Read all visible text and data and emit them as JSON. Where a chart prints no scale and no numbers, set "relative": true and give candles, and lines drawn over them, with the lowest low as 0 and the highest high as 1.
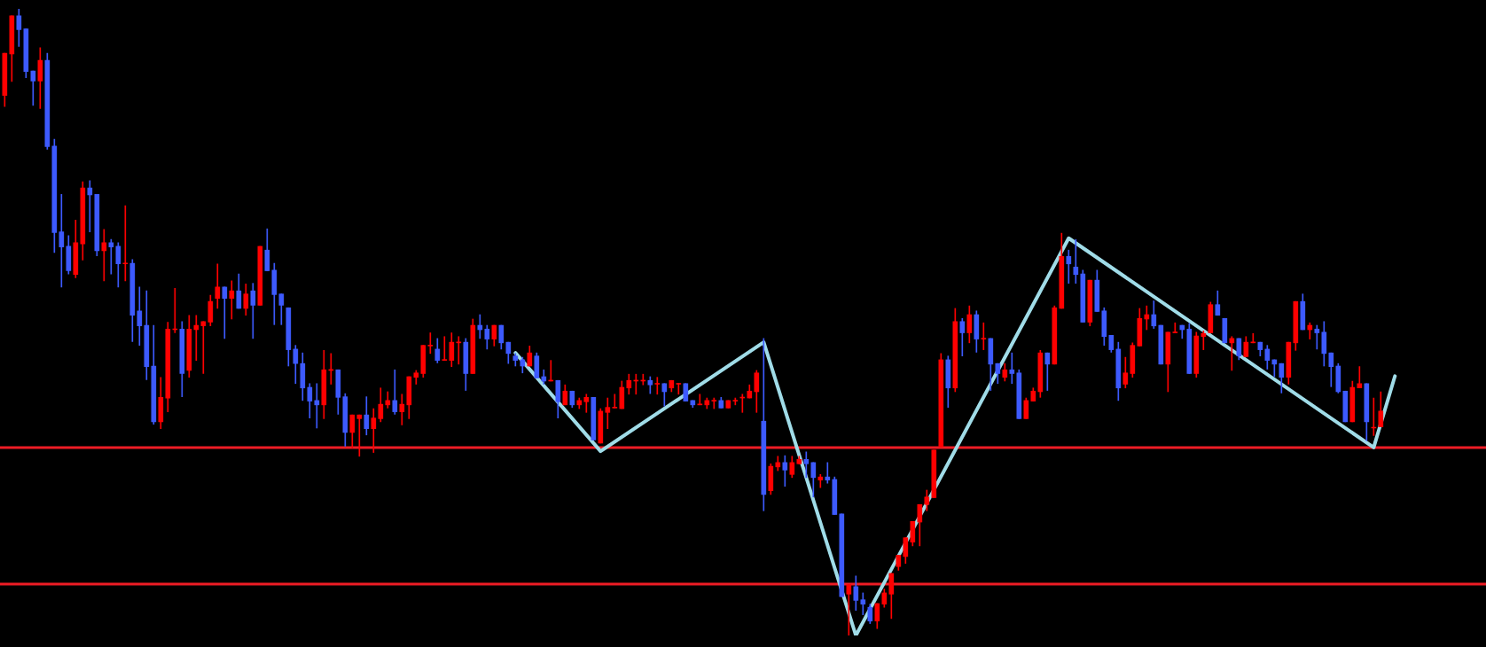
{
  "chart_data": {
    "type": "candlestick",
    "relative": true,
    "tick_labels": false,
    "categories": [
      null,
      null,
      null,
      null,
      null,
      null,
      null,
      null,
      null,
      null,
      null,
      null,
      null,
      null,
      null,
      null,
      null,
      null,
      null,
      null,
      null,
      null,
      null,
      null,
      null,
      null,
      null,
      null,
      null,
      null,
      null,
      null,
      null,
      null,
      null,
      null,
      null,
      null,
      null,
      null,
      null,
      null,
      null,
      null,
      null,
      null,
      null,
      null,
      null,
      null,
      null,
      null,
      null,
      null,
      null,
      null,
      null,
      null,
      null,
      null,
      null,
      null,
      null,
      null,
      null,
      null,
      null,
      null,
      null,
      null,
      null,
      null,
      null,
      null,
      null,
      null,
      null,
      null,
      null,
      null,
      null,
      null,
      null,
      null,
      null,
      null,
      null,
      null,
      null,
      null,
      null,
      null,
      null,
      null,
      null,
      null,
      null,
      null,
      null,
      null,
      null,
      null,
      null,
      null,
      null,
      null,
      null,
      null,
      null,
      null,
      null,
      null,
      null,
      null,
      null,
      null,
      null,
      null,
      null,
      null,
      null,
      null,
      null,
      null,
      null,
      null,
      null,
      null,
      null,
      null,
      null,
      null,
      null,
      null,
      null,
      null,
      null,
      null,
      null,
      null,
      null,
      null,
      null,
      null,
      null,
      null,
      null,
      null,
      null,
      null,
      null,
      null,
      null,
      null,
      null,
      null,
      null,
      null,
      null,
      null,
      null,
      null,
      null,
      null,
      null,
      null,
      null,
      null,
      null,
      null,
      null,
      null,
      null,
      null,
      null,
      null,
      null,
      null,
      null,
      null,
      null,
      null,
      null,
      null,
      null,
      null,
      null,
      null,
      null,
      null,
      null,
      null,
      null,
      null,
      null,
      null,
      null
    ],
    "ohlc": [
      [
        0.862,
        0.929,
        0.844,
        0.929
      ],
      [
        0.928,
        0.989,
        0.884,
        0.989
      ],
      [
        0.989,
        1,
        0.94,
        0.967
      ],
      [
        0.968,
        0.968,
        0.89,
        0.9
      ],
      [
        0.901,
        0.901,
        0.846,
        0.885
      ],
      [
        0.885,
        0.938,
        0.841,
        0.918
      ],
      [
        0.918,
        0.929,
        0.776,
        0.78
      ],
      [
        0.781,
        0.792,
        0.611,
        0.643
      ],
      [
        0.644,
        0.704,
        0.556,
        0.62
      ],
      [
        0.621,
        0.638,
        0.577,
        0.582
      ],
      [
        0.576,
        0.663,
        0.571,
        0.627
      ],
      [
        0.625,
        0.724,
        0.599,
        0.714
      ],
      [
        0.714,
        0.726,
        0.644,
        0.703
      ],
      [
        0.704,
        0.704,
        0.606,
        0.614
      ],
      [
        0.614,
        0.648,
        0.566,
        0.627
      ],
      [
        0.627,
        0.632,
        0.577,
        0.62
      ],
      [
        0.621,
        0.627,
        0.556,
        0.593
      ],
      [
        0.593,
        0.686,
        0.566,
        0.594
      ],
      [
        0.594,
        0.6,
        0.469,
        0.511
      ],
      [
        0.518,
        0.556,
        0.463,
        0.494
      ],
      [
        0.495,
        0.55,
        0.408,
        0.429
      ],
      [
        0.43,
        0.495,
        0.337,
        0.341
      ],
      [
        0.341,
        0.412,
        0.33,
        0.38
      ],
      [
        0.379,
        0.5,
        0.357,
        0.489
      ],
      [
        0.488,
        0.554,
        0.483,
        0.489
      ],
      [
        0.489,
        0.501,
        0.381,
        0.418
      ],
      [
        0.423,
        0.511,
        0.412,
        0.489
      ],
      [
        0.488,
        0.511,
        0.439,
        0.495
      ],
      [
        0.494,
        0.501,
        0.418,
        0.501
      ],
      [
        0.5,
        0.543,
        0.494,
        0.533
      ],
      [
        0.538,
        0.593,
        0.522,
        0.556
      ],
      [
        0.556,
        0.556,
        0.474,
        0.538
      ],
      [
        0.538,
        0.566,
        0.505,
        0.55
      ],
      [
        0.55,
        0.577,
        0.522,
        0.522
      ],
      [
        0.522,
        0.561,
        0.511,
        0.545
      ],
      [
        0.55,
        0.562,
        0.474,
        0.527
      ],
      [
        0.527,
        0.621,
        0.527,
        0.621
      ],
      [
        0.615,
        0.649,
        0.582,
        0.582
      ],
      [
        0.583,
        0.594,
        0.496,
        0.544
      ],
      [
        0.545,
        0.545,
        0.496,
        0.527
      ],
      [
        0.523,
        0.523,
        0.43,
        0.456
      ],
      [
        0.457,
        0.463,
        0.402,
        0.434
      ],
      [
        0.434,
        0.451,
        0.375,
        0.395
      ],
      [
        0.396,
        0.402,
        0.347,
        0.374
      ],
      [
        0.375,
        0.402,
        0.331,
        0.368
      ],
      [
        0.368,
        0.455,
        0.346,
        0.424
      ],
      [
        0.423,
        0.45,
        0.401,
        0.424
      ],
      [
        0.424,
        0.424,
        0.353,
        0.38
      ],
      [
        0.381,
        0.386,
        0.302,
        0.324
      ],
      [
        0.324,
        0.352,
        0.299,
        0.352
      ],
      [
        0.346,
        0.352,
        0.286,
        0.352
      ],
      [
        0.352,
        0.381,
        0.32,
        0.33
      ],
      [
        0.33,
        0.362,
        0.292,
        0.347
      ],
      [
        0.346,
        0.395,
        0.341,
        0.369
      ],
      [
        0.368,
        0.389,
        0.363,
        0.375
      ],
      [
        0.375,
        0.424,
        0.353,
        0.357
      ],
      [
        0.357,
        0.385,
        0.336,
        0.369
      ],
      [
        0.368,
        0.413,
        0.346,
        0.413
      ],
      [
        0.412,
        0.423,
        0.401,
        0.419
      ],
      [
        0.418,
        0.463,
        0.412,
        0.463
      ],
      [
        0.462,
        0.483,
        0.45,
        0.463
      ],
      [
        0.457,
        0.474,
        0.435,
        0.439
      ],
      [
        0.439,
        0.477,
        0.439,
        0.44
      ],
      [
        0.439,
        0.483,
        0.429,
        0.468
      ],
      [
        0.467,
        0.477,
        0.433,
        0.468
      ],
      [
        0.468,
        0.474,
        0.391,
        0.418
      ],
      [
        0.418,
        0.505,
        0.418,
        0.495
      ],
      [
        0.495,
        0.512,
        0.474,
        0.488
      ],
      [
        0.489,
        0.495,
        0.457,
        0.473
      ],
      [
        0.473,
        0.495,
        0.462,
        0.495
      ],
      [
        0.495,
        0.495,
        0.457,
        0.467
      ],
      [
        0.468,
        0.468,
        0.434,
        0.45
      ],
      [
        0.446,
        0.45,
        0.43,
        0.439
      ],
      [
        0.44,
        0.444,
        0.419,
        0.43
      ],
      [
        0.43,
        0.462,
        0.43,
        0.451
      ],
      [
        0.446,
        0.451,
        0.411,
        0.411
      ],
      [
        0.413,
        0.424,
        0.401,
        0.406
      ],
      [
        0.406,
        0.439,
        0.406,
        0.407
      ],
      [
        0.407,
        0.407,
        0.347,
        0.373
      ],
      [
        0.368,
        0.4,
        0.368,
        0.39
      ],
      [
        0.39,
        0.39,
        0.364,
        0.368
      ],
      [
        0.368,
        0.379,
        0.362,
        0.375
      ],
      [
        0.373,
        0.385,
        0.356,
        0.38
      ],
      [
        0.38,
        0.38,
        0.312,
        0.312
      ],
      [
        0.307,
        0.362,
        0.307,
        0.358
      ],
      [
        0.356,
        0.379,
        0.33,
        0.364
      ],
      [
        0.363,
        0.385,
        0.363,
        0.364
      ],
      [
        0.362,
        0.406,
        0.362,
        0.396
      ],
      [
        0.395,
        0.417,
        0.385,
        0.407
      ],
      [
        0.406,
        0.417,
        0.385,
        0.407
      ],
      [
        0.406,
        0.417,
        0.4,
        0.407
      ],
      [
        0.407,
        0.413,
        0.386,
        0.4
      ],
      [
        0.401,
        0.412,
        0.385,
        0.402
      ],
      [
        0.402,
        0.402,
        0.366,
        0.389
      ],
      [
        0.395,
        0.407,
        0.389,
        0.407
      ],
      [
        0.401,
        0.402,
        0.385,
        0.402
      ],
      [
        0.402,
        0.402,
        0.374,
        0.374
      ],
      [
        0.375,
        0.375,
        0.364,
        0.368
      ],
      [
        0.368,
        0.385,
        0.368,
        0.369
      ],
      [
        0.368,
        0.379,
        0.362,
        0.375
      ],
      [
        0.374,
        0.379,
        0.362,
        0.375
      ],
      [
        0.375,
        0.38,
        0.363,
        0.363
      ],
      [
        0.363,
        0.375,
        0.363,
        0.375
      ],
      [
        0.374,
        0.379,
        0.368,
        0.375
      ],
      [
        0.379,
        0.385,
        0.356,
        0.38
      ],
      [
        0.379,
        0.4,
        0.379,
        0.39
      ],
      [
        0.389,
        0.423,
        0.356,
        0.419
      ],
      [
        0.342,
        0.474,
        0.199,
        0.225
      ],
      [
        0.231,
        0.274,
        0.225,
        0.27
      ],
      [
        0.269,
        0.286,
        0.263,
        0.276
      ],
      [
        0.276,
        0.287,
        0.238,
        0.264
      ],
      [
        0.257,
        0.286,
        0.252,
        0.276
      ],
      [
        0.274,
        0.286,
        0.274,
        0.281
      ],
      [
        0.281,
        0.293,
        0.252,
        0.274
      ],
      [
        0.276,
        0.276,
        0.221,
        0.252
      ],
      [
        0.248,
        0.257,
        0.236,
        0.253
      ],
      [
        0.253,
        0.276,
        0.243,
        0.248
      ],
      [
        0.249,
        0.253,
        0.193,
        0.193
      ],
      [
        0.194,
        0.194,
        0.062,
        0.062
      ],
      [
        0.066,
        0.081,
        0,
        0.081
      ],
      [
        0.078,
        0.095,
        0.04,
        0.056
      ],
      [
        0.057,
        0.068,
        0.033,
        0.05
      ],
      [
        0.045,
        0.05,
        0.019,
        0.023
      ],
      [
        0.023,
        0.051,
        0.011,
        0.051
      ],
      [
        0.05,
        0.074,
        0.045,
        0.068
      ],
      [
        0.066,
        0.099,
        0.027,
        0.099
      ],
      [
        0.11,
        0.128,
        0.104,
        0.128
      ],
      [
        0.126,
        0.156,
        0.115,
        0.156
      ],
      [
        0.149,
        0.182,
        0.143,
        0.182
      ],
      [
        0.181,
        0.209,
        0.143,
        0.209
      ],
      [
        0.209,
        0.232,
        0.199,
        0.221
      ],
      [
        0.22,
        0.296,
        0.22,
        0.296
      ],
      [
        0.301,
        0.45,
        0.301,
        0.44
      ],
      [
        0.44,
        0.446,
        0.364,
        0.395
      ],
      [
        0.395,
        0.522,
        0.389,
        0.501
      ],
      [
        0.501,
        0.506,
        0.446,
        0.483
      ],
      [
        0.483,
        0.526,
        0.467,
        0.512
      ],
      [
        0.512,
        0.518,
        0.452,
        0.473
      ],
      [
        0.473,
        0.499,
        0.456,
        0.474
      ],
      [
        0.474,
        0.474,
        0.391,
        0.433
      ],
      [
        0.434,
        0.434,
        0.402,
        0.418
      ],
      [
        0.412,
        0.434,
        0.406,
        0.424
      ],
      [
        0.424,
        0.451,
        0.402,
        0.418
      ],
      [
        0.419,
        0.424,
        0.346,
        0.346
      ],
      [
        0.346,
        0.379,
        0.346,
        0.375
      ],
      [
        0.374,
        0.395,
        0.374,
        0.39
      ],
      [
        0.389,
        0.455,
        0.38,
        0.451
      ],
      [
        0.451,
        0.451,
        0.391,
        0.433
      ],
      [
        0.433,
        0.526,
        0.433,
        0.523
      ],
      [
        0.522,
        0.642,
        0.522,
        0.605
      ],
      [
        0.605,
        0.615,
        0.562,
        0.593
      ],
      [
        0.588,
        0.632,
        0.562,
        0.576
      ],
      [
        0.577,
        0.583,
        0.5,
        0.5
      ],
      [
        0.5,
        0.567,
        0.494,
        0.567
      ],
      [
        0.567,
        0.583,
        0.517,
        0.517
      ],
      [
        0.518,
        0.523,
        0.463,
        0.477
      ],
      [
        0.479,
        0.479,
        0.452,
        0.456
      ],
      [
        0.457,
        0.468,
        0.375,
        0.395
      ],
      [
        0.401,
        0.444,
        0.395,
        0.419
      ],
      [
        0.418,
        0.467,
        0.412,
        0.463
      ],
      [
        0.462,
        0.522,
        0.462,
        0.506
      ],
      [
        0.505,
        0.526,
        0.488,
        0.512
      ],
      [
        0.512,
        0.534,
        0.49,
        0.494
      ],
      [
        0.495,
        0.495,
        0.433,
        0.433
      ],
      [
        0.433,
        0.484,
        0.389,
        0.484
      ],
      [
        0.483,
        0.499,
        0.483,
        0.484
      ],
      [
        0.495,
        0.495,
        0.474,
        0.488
      ],
      [
        0.489,
        0.498,
        0.418,
        0.418
      ],
      [
        0.418,
        0.484,
        0.412,
        0.478
      ],
      [
        0.477,
        0.486,
        0.456,
        0.482
      ],
      [
        0.483,
        0.532,
        0.483,
        0.528
      ],
      [
        0.528,
        0.55,
        0.511,
        0.511
      ],
      [
        0.506,
        0.506,
        0.467,
        0.467
      ],
      [
        0.467,
        0.477,
        0.423,
        0.474
      ],
      [
        0.474,
        0.474,
        0.44,
        0.446
      ],
      [
        0.445,
        0.477,
        0.445,
        0.468
      ],
      [
        0.467,
        0.482,
        0.467,
        0.468
      ],
      [
        0.468,
        0.468,
        0.446,
        0.456
      ],
      [
        0.457,
        0.463,
        0.425,
        0.439
      ],
      [
        0.44,
        0.44,
        0.413,
        0.433
      ],
      [
        0.434,
        0.434,
        0.387,
        0.412
      ],
      [
        0.412,
        0.468,
        0.401,
        0.468
      ],
      [
        0.467,
        0.533,
        0.455,
        0.533
      ],
      [
        0.533,
        0.545,
        0.488,
        0.488
      ],
      [
        0.488,
        0.499,
        0.473,
        0.495
      ],
      [
        0.489,
        0.495,
        0.457,
        0.483
      ],
      [
        0.484,
        0.501,
        0.43,
        0.45
      ],
      [
        0.451,
        0.451,
        0.397,
        0.429
      ],
      [
        0.43,
        0.434,
        0.387,
        0.389
      ],
      [
        0.39,
        0.39,
        0.341,
        0.341
      ],
      [
        0.341,
        0.406,
        0.341,
        0.396
      ],
      [
        0.395,
        0.429,
        0.395,
        0.402
      ],
      [
        0.402,
        0.402,
        0.311,
        0.341
      ],
      [
        0.331,
        0.379,
        0.319,
        0.332
      ],
      [
        0.333,
        0.389,
        0.333,
        0.358
      ],
      null,
      null
    ],
    "colors": [
      "#ff0000",
      "#ff0000",
      "#3d5afe",
      "#3d5afe",
      "#3d5afe",
      "#ff0000",
      "#3d5afe",
      "#3d5afe",
      "#3d5afe",
      "#3d5afe",
      "#ff0000",
      "#ff0000",
      "#3d5afe",
      "#3d5afe",
      "#ff0000",
      "#3d5afe",
      "#3d5afe",
      "#ff0000",
      "#3d5afe",
      "#3d5afe",
      "#3d5afe",
      "#3d5afe",
      "#ff0000",
      "#ff0000",
      "#ff0000",
      "#3d5afe",
      "#ff0000",
      "#ff0000",
      "#ff0000",
      "#ff0000",
      "#ff0000",
      "#3d5afe",
      "#ff0000",
      "#3d5afe",
      "#ff0000",
      "#3d5afe",
      "#ff0000",
      "#3d5afe",
      "#3d5afe",
      "#3d5afe",
      "#3d5afe",
      "#3d5afe",
      "#3d5afe",
      "#3d5afe",
      "#3d5afe",
      "#ff0000",
      "#ff0000",
      "#3d5afe",
      "#3d5afe",
      "#ff0000",
      "#ff0000",
      "#3d5afe",
      "#ff0000",
      "#ff0000",
      "#ff0000",
      "#3d5afe",
      "#ff0000",
      "#ff0000",
      "#ff0000",
      "#ff0000",
      "#ff0000",
      "#3d5afe",
      "#ff0000",
      "#ff0000",
      "#ff0000",
      "#3d5afe",
      "#ff0000",
      "#3d5afe",
      "#3d5afe",
      "#ff0000",
      "#3d5afe",
      "#3d5afe",
      "#3d5afe",
      "#3d5afe",
      "#ff0000",
      "#3d5afe",
      "#3d5afe",
      "#ff0000",
      "#3d5afe",
      "#ff0000",
      "#3d5afe",
      "#ff0000",
      "#ff0000",
      "#3d5afe",
      "#ff0000",
      "#ff0000",
      "#ff0000",
      "#ff0000",
      "#ff0000",
      "#ff0000",
      "#ff0000",
      "#3d5afe",
      "#ff0000",
      "#3d5afe",
      "#ff0000",
      "#ff0000",
      "#3d5afe",
      "#3d5afe",
      "#ff0000",
      "#ff0000",
      "#ff0000",
      "#3d5afe",
      "#ff0000",
      "#ff0000",
      "#ff0000",
      "#ff0000",
      "#ff0000",
      "#3d5afe",
      "#ff0000",
      "#ff0000",
      "#3d5afe",
      "#ff0000",
      "#ff0000",
      "#3d5afe",
      "#3d5afe",
      "#ff0000",
      "#3d5afe",
      "#3d5afe",
      "#3d5afe",
      "#ff0000",
      "#3d5afe",
      "#3d5afe",
      "#3d5afe",
      "#ff0000",
      "#ff0000",
      "#ff0000",
      "#ff0000",
      "#ff0000",
      "#ff0000",
      "#ff0000",
      "#ff0000",
      "#ff0000",
      "#ff0000",
      "#3d5afe",
      "#ff0000",
      "#3d5afe",
      "#ff0000",
      "#3d5afe",
      "#ff0000",
      "#3d5afe",
      "#3d5afe",
      "#ff0000",
      "#3d5afe",
      "#3d5afe",
      "#ff0000",
      "#ff0000",
      "#ff0000",
      "#3d5afe",
      "#ff0000",
      "#ff0000",
      "#3d5afe",
      "#3d5afe",
      "#3d5afe",
      "#ff0000",
      "#3d5afe",
      "#3d5afe",
      "#3d5afe",
      "#3d5afe",
      "#ff0000",
      "#ff0000",
      "#ff0000",
      "#ff0000",
      "#3d5afe",
      "#3d5afe",
      "#ff0000",
      "#ff0000",
      "#3d5afe",
      "#3d5afe",
      "#ff0000",
      "#ff0000",
      "#ff0000",
      "#3d5afe",
      "#3d5afe",
      "#ff0000",
      "#3d5afe",
      "#ff0000",
      "#ff0000",
      "#3d5afe",
      "#3d5afe",
      "#3d5afe",
      "#3d5afe",
      "#ff0000",
      "#ff0000",
      "#3d5afe",
      "#ff0000",
      "#3d5afe",
      "#3d5afe",
      "#3d5afe",
      "#3d5afe",
      "#3d5afe",
      "#ff0000",
      "#ff0000",
      "#3d5afe",
      "#ff0000",
      "#ff0000",
      null,
      null
    ],
    "series": [
      {
        "type": "line",
        "color": "#a0dce8",
        "values": [
          null,
          null,
          null,
          null,
          null,
          null,
          null,
          null,
          null,
          null,
          null,
          null,
          null,
          null,
          null,
          null,
          null,
          null,
          null,
          null,
          null,
          null,
          null,
          null,
          null,
          null,
          null,
          null,
          null,
          null,
          null,
          null,
          null,
          null,
          null,
          null,
          null,
          null,
          null,
          null,
          null,
          null,
          null,
          null,
          null,
          null,
          null,
          null,
          null,
          null,
          null,
          null,
          null,
          null,
          null,
          null,
          null,
          null,
          null,
          null,
          null,
          null,
          null,
          null,
          null,
          null,
          null,
          null,
          null,
          null,
          null,
          null,
          0.451,
          null,
          null,
          null,
          null,
          null,
          null,
          null,
          null,
          null,
          null,
          null,
          0.294,
          null,
          null,
          null,
          null,
          null,
          null,
          null,
          null,
          null,
          null,
          null,
          null,
          null,
          null,
          null,
          null,
          null,
          null,
          null,
          null,
          null,
          null,
          0.468,
          null,
          null,
          null,
          null,
          null,
          null,
          null,
          null,
          null,
          null,
          null,
          null,
          0,
          null,
          null,
          null,
          null,
          null,
          null,
          null,
          null,
          null,
          null,
          null,
          null,
          null,
          null,
          null,
          null,
          null,
          null,
          null,
          null,
          null,
          null,
          null,
          null,
          null,
          null,
          null,
          null,
          null,
          0.634,
          null,
          null,
          null,
          null,
          null,
          null,
          null,
          null,
          null,
          null,
          null,
          null,
          null,
          null,
          null,
          null,
          null,
          null,
          null,
          null,
          null,
          null,
          null,
          null,
          null,
          null,
          null,
          null,
          null,
          null,
          null,
          null,
          null,
          null,
          null,
          null,
          null,
          null,
          null,
          null,
          null,
          null,
          0.3,
          null,
          null,
          0.414
        ]
      }
    ],
    "ref_lines": [
      {
        "axis": "y",
        "value": 0.3,
        "color": "#ee1c25"
      },
      {
        "axis": "y",
        "value": 0.082,
        "color": "#ee1c25"
      }
    ]
  }
}
